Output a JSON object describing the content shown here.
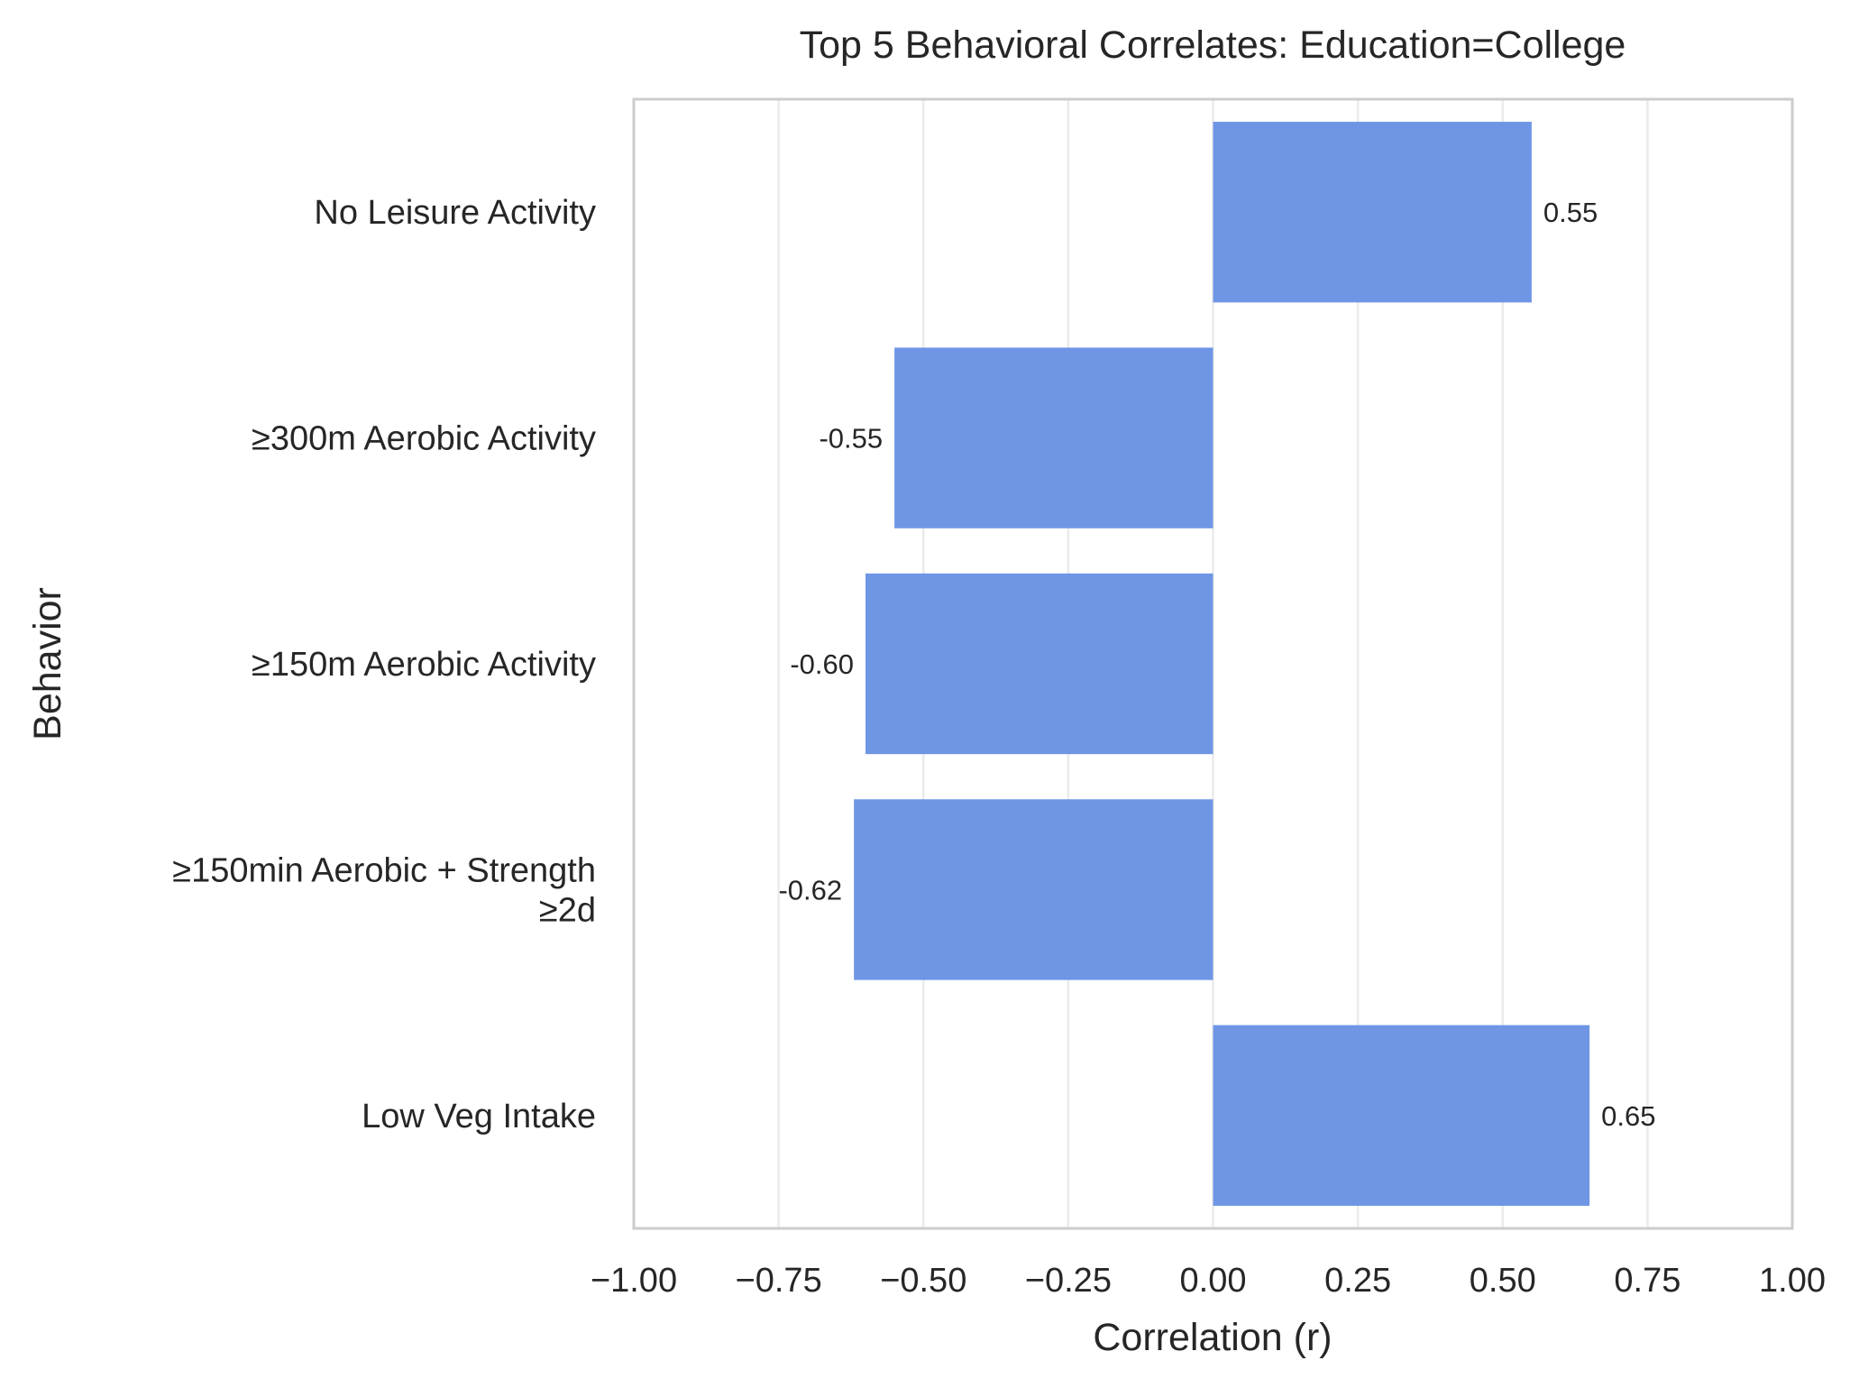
{
  "chart_data": {
    "type": "bar",
    "orientation": "horizontal",
    "title": "Top 5 Behavioral Correlates: Education=College",
    "xlabel": "Correlation (r)",
    "ylabel": "Behavior",
    "xlim": [
      -1.0,
      1.0
    ],
    "xticks": [
      -1.0,
      -0.75,
      -0.5,
      -0.25,
      0.0,
      0.25,
      0.5,
      0.75,
      1.0
    ],
    "xtick_labels": [
      "−1.00",
      "−0.75",
      "−0.50",
      "−0.25",
      "0.00",
      "0.25",
      "0.50",
      "0.75",
      "1.00"
    ],
    "categories": [
      "No Leisure Activity",
      "≥300m Aerobic Activity",
      "≥150m Aerobic Activity",
      "≥150min Aerobic + Strength ≥2d",
      "Low Veg Intake"
    ],
    "category_label_lines": [
      [
        "No Leisure Activity"
      ],
      [
        "≥300m Aerobic Activity"
      ],
      [
        "≥150m Aerobic Activity"
      ],
      [
        "≥150min Aerobic + Strength",
        "≥2d"
      ],
      [
        "Low Veg Intake"
      ]
    ],
    "values": [
      0.55,
      -0.55,
      -0.6,
      -0.62,
      0.65
    ],
    "data_labels": [
      "0.55",
      "-0.55",
      "-0.60",
      "-0.62",
      "0.65"
    ],
    "bar_color": "#6e96e5",
    "grid": "vertical",
    "legend": "none"
  }
}
